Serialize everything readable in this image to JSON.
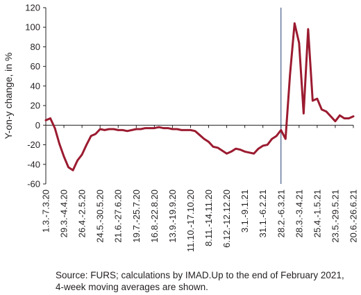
{
  "chart_data": {
    "type": "line",
    "ylabel": "Y-on-y change, in %",
    "ylim": [
      -60,
      120
    ],
    "y_ticks": [
      120,
      100,
      80,
      60,
      40,
      20,
      0,
      -20,
      -40,
      -60
    ],
    "x_tick_labels": [
      "1.3.-7.3.20",
      "29.3.-4.4.20",
      "26.4.-2.5.20",
      "24.5.-30.5.20",
      "21.6.-27.6.20",
      "19.7.-25.7.20",
      "16.8.-22.8.20",
      "13.9.-19.9.20",
      "11.10.-17.10.20",
      "8.11.-14.11.20",
      "6.12.-12.12.20",
      "3.1.-9.1.21",
      "31.1.-6.2.21",
      "28.2.-6.3.21",
      "28.3.-3.4.21",
      "25.4.-1.5.21",
      "23.5.-29.5.21",
      "20.6.-26.6.21"
    ],
    "x_tick_positions": [
      0,
      4,
      8,
      12,
      16,
      20,
      24,
      28,
      32,
      36,
      40,
      44,
      48,
      52,
      56,
      60,
      64,
      68
    ],
    "vline_x": 52,
    "grid": false,
    "series_color": "#9b1b30",
    "series": [
      {
        "values": [
          5,
          7,
          -3,
          -19,
          -32,
          -43,
          -46,
          -36,
          -30,
          -20,
          -11,
          -9,
          -4,
          -5,
          -4,
          -4,
          -5,
          -5,
          -6,
          -5,
          -4,
          -4,
          -3,
          -3,
          -3,
          -2,
          -3,
          -3,
          -4,
          -4,
          -5,
          -5,
          -5,
          -6,
          -10,
          -14,
          -17,
          -22,
          -23,
          -26,
          -29,
          -27,
          -24,
          -25,
          -27,
          -28,
          -29,
          -24,
          -21,
          -20,
          -14,
          -11,
          -5,
          -14,
          52,
          104,
          84,
          12,
          98,
          25,
          27,
          16,
          14,
          9,
          4,
          10,
          7,
          7,
          9
        ]
      }
    ]
  },
  "source_note": "Source: FURS; calculations by IMAD.Up to the end of February 2021, 4-week moving averages are shown."
}
